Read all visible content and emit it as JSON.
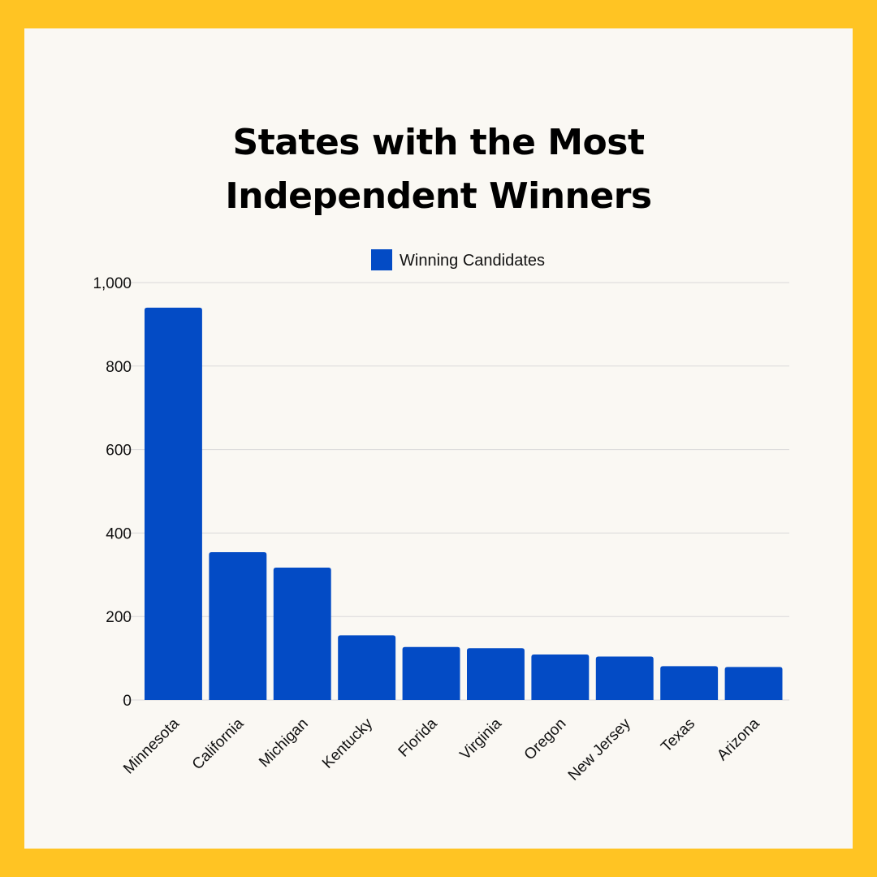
{
  "chart_data": {
    "type": "bar",
    "title_lines": [
      "States with the Most",
      "Independent Winners"
    ],
    "categories": [
      "Minnesota",
      "California",
      "Michigan",
      "Kentucky",
      "Florida",
      "Virginia",
      "Oregon",
      "New Jersey",
      "Texas",
      "Arizona"
    ],
    "series": [
      {
        "name": "Winning Candidates",
        "color": "#034BC5",
        "values": [
          940,
          354,
          317,
          155,
          127,
          124,
          109,
          104,
          81,
          79
        ]
      }
    ],
    "ylim": [
      0,
      1000
    ],
    "yticks": [
      0,
      200,
      400,
      600,
      800,
      1000
    ],
    "ytick_labels": [
      "0",
      "200",
      "400",
      "600",
      "800",
      "1,000"
    ],
    "grid": true,
    "legend_position": "top-center"
  },
  "colors": {
    "frame": "#FFC423",
    "background": "#FAF8F3",
    "bar": "#034BC5",
    "grid": "#D9D9D9"
  }
}
